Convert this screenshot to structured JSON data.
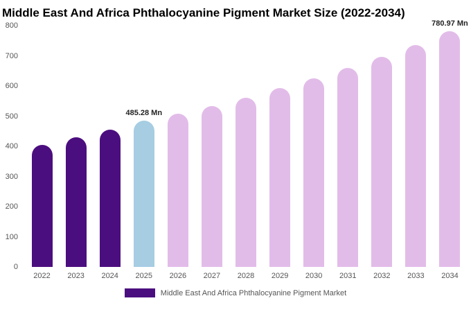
{
  "chart_data": {
    "type": "bar",
    "title": "Middle East And Africa Phthalocyanine Pigment Market Size (2022-2034)",
    "categories": [
      "2022",
      "2023",
      "2024",
      "2025",
      "2026",
      "2027",
      "2028",
      "2029",
      "2030",
      "2031",
      "2032",
      "2033",
      "2034"
    ],
    "values": [
      405,
      430,
      455,
      485.28,
      507,
      533,
      562,
      593,
      625,
      660,
      697,
      735,
      780.97
    ],
    "unit": "Mn",
    "ylim": [
      0,
      800
    ],
    "yticks": [
      0,
      100,
      200,
      300,
      400,
      500,
      600,
      700,
      800
    ],
    "grid": false,
    "colors": [
      "#4b0e7f",
      "#4b0e7f",
      "#4b0e7f",
      "#a6cde2",
      "#e2bce9",
      "#e2bce9",
      "#e2bce9",
      "#e2bce9",
      "#e2bce9",
      "#e2bce9",
      "#e2bce9",
      "#e2bce9",
      "#e2bce9"
    ],
    "annotations": [
      {
        "index": 3,
        "text": "485.28 Mn"
      },
      {
        "index": 12,
        "text": "780.97 Mn"
      }
    ],
    "legend_position": "bottom",
    "legend": {
      "label": "Middle East And Africa Phthalocyanine Pigment Market",
      "color": "#4b0e7f"
    }
  }
}
